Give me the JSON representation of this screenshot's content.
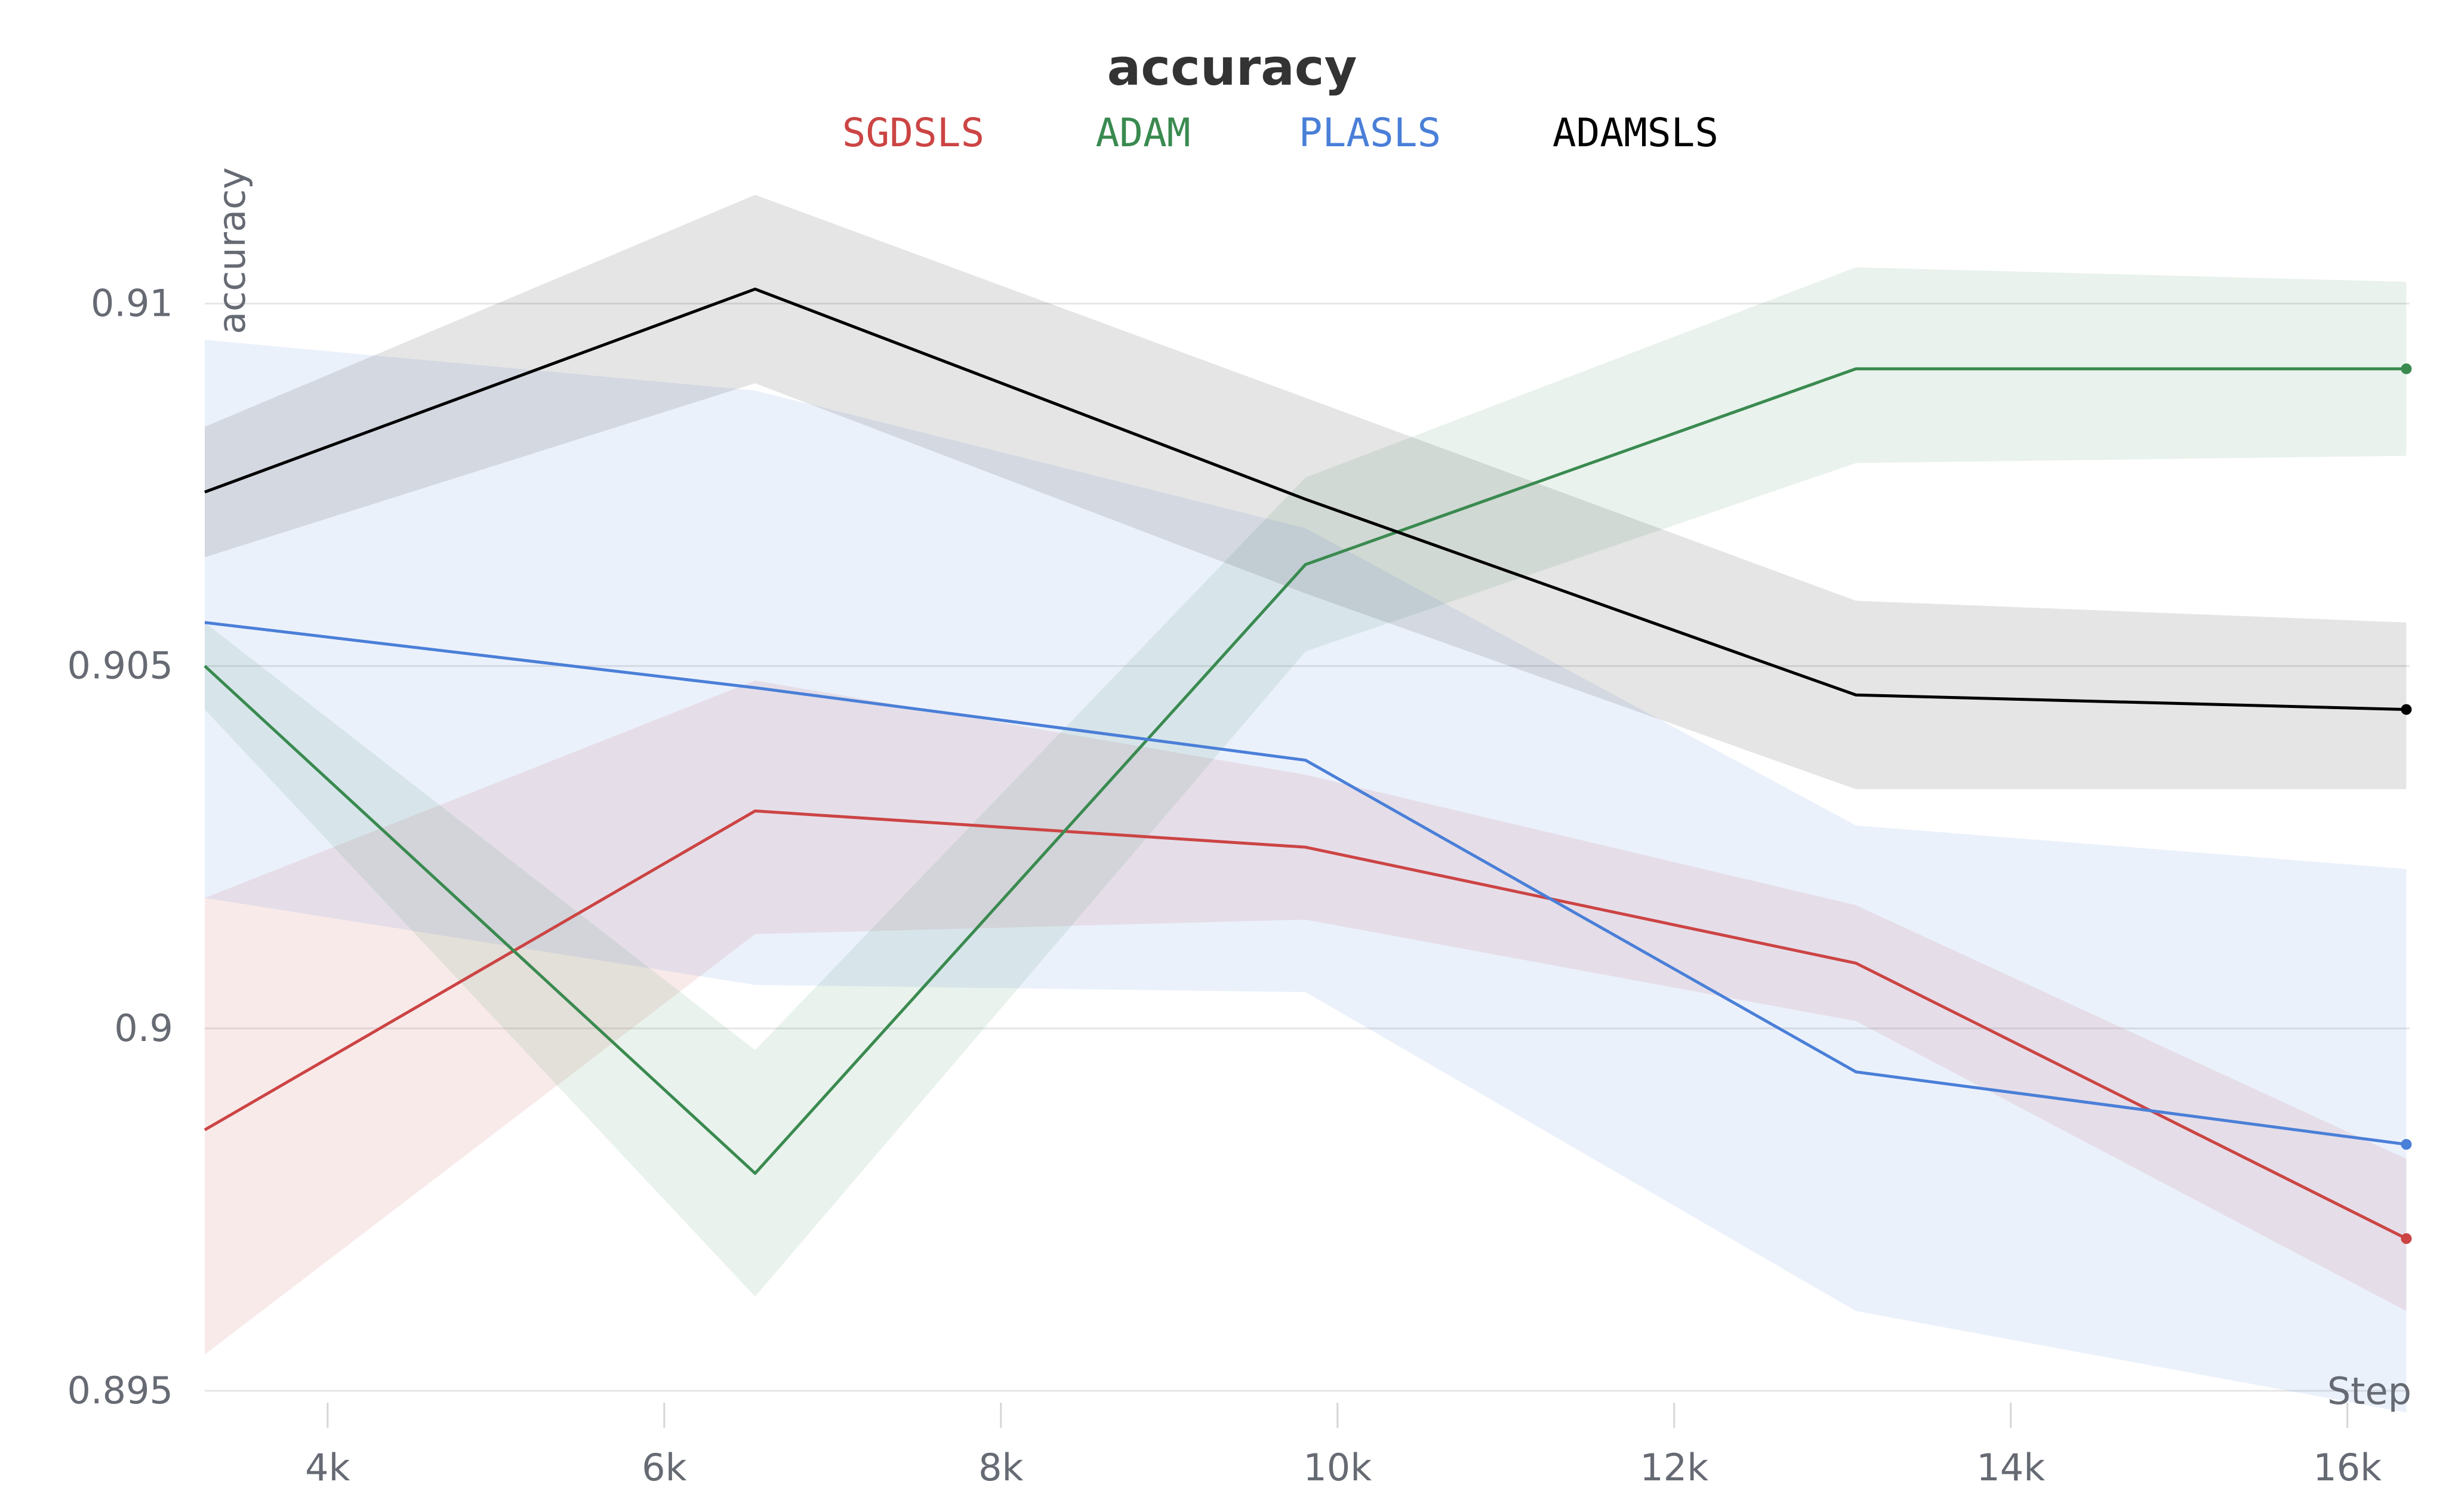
{
  "chart_data": {
    "type": "line",
    "title": "accuracy",
    "xlabel": "Step",
    "ylabel": "accuracy",
    "xlim": [
      3270,
      16370
    ],
    "ylim": [
      0.895,
      0.9118
    ],
    "x_ticks": [
      4000,
      6000,
      8000,
      10000,
      12000,
      14000,
      16000
    ],
    "x_tick_labels": [
      "4k",
      "6k",
      "8k",
      "10k",
      "12k",
      "14k",
      "16k"
    ],
    "y_ticks": [
      0.895,
      0.9,
      0.905,
      0.91
    ],
    "y_tick_labels": [
      "0.895",
      "0.9",
      "0.905",
      "0.91"
    ],
    "grid": true,
    "legend_position": "top-center",
    "x": [
      3270,
      6540,
      9810,
      13080,
      16350
    ],
    "series": [
      {
        "name": "SGDSLS",
        "color": "#cc4444",
        "values": [
          0.8986,
          0.903,
          0.9025,
          0.9009,
          0.8971
        ],
        "upper": [
          0.9018,
          0.9048,
          0.9035,
          0.9017,
          0.8982
        ],
        "lower": [
          0.8955,
          0.9013,
          0.9015,
          0.9001,
          0.8961
        ]
      },
      {
        "name": "ADAM",
        "color": "#3a8a50",
        "values": [
          0.905,
          0.898,
          0.9064,
          0.9091,
          0.9091
        ],
        "upper": [
          0.9056,
          0.8997,
          0.9076,
          0.9105,
          0.9103
        ],
        "lower": [
          0.9044,
          0.8963,
          0.9052,
          0.9078,
          0.9079
        ]
      },
      {
        "name": "PLASLS",
        "color": "#4a7fd8",
        "values": [
          0.9056,
          0.9047,
          0.9037,
          0.8994,
          0.8984
        ],
        "upper": [
          0.9095,
          0.9088,
          0.9069,
          0.9028,
          0.9022
        ],
        "lower": [
          0.9018,
          0.9006,
          0.9005,
          0.8961,
          0.8947
        ]
      },
      {
        "name": "ADAMSLS",
        "color": "#000000",
        "values": [
          0.9074,
          0.9102,
          0.9073,
          0.9046,
          0.9044
        ],
        "upper": [
          0.9083,
          0.9115,
          0.9087,
          0.9059,
          0.9056
        ],
        "lower": [
          0.9065,
          0.9089,
          0.906,
          0.9033,
          0.9033
        ]
      }
    ]
  }
}
